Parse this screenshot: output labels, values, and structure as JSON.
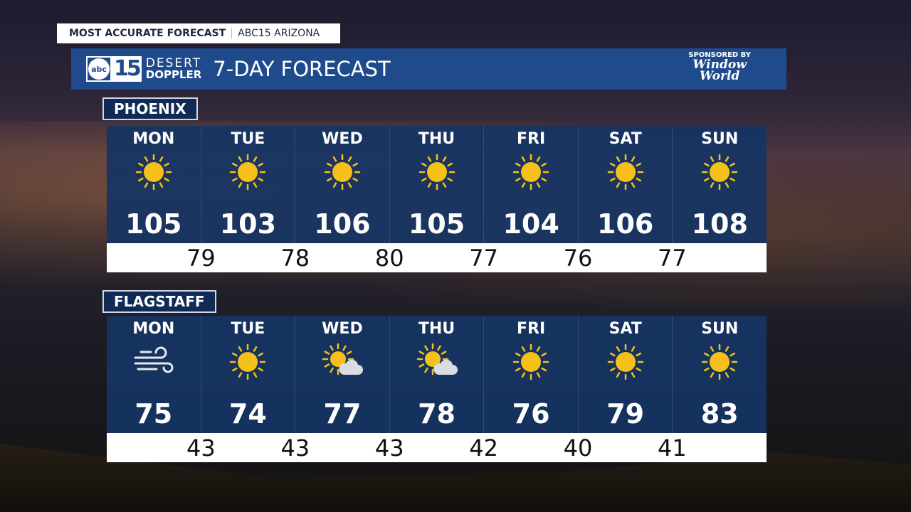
{
  "tagline": {
    "primary": "MOST ACCURATE FORECAST",
    "secondary": "ABC15 ARIZONA"
  },
  "banner": {
    "logo_abc": "abc",
    "logo_15": "15",
    "logo_line1": "DESERT",
    "logo_line2": "DOPPLER",
    "title": "7-DAY FORECAST",
    "sponsor_label": "SPONSORED BY",
    "sponsor_line1": "Window",
    "sponsor_line2": "World"
  },
  "colors": {
    "banner": "#1f4b8c",
    "panel": "#163464",
    "sun": "#f5c01a"
  },
  "cities": [
    {
      "name": "PHOENIX",
      "days": [
        {
          "day": "MON",
          "icon": "sun-icon",
          "high": "105"
        },
        {
          "day": "TUE",
          "icon": "sun-icon",
          "high": "103"
        },
        {
          "day": "WED",
          "icon": "sun-icon",
          "high": "106"
        },
        {
          "day": "THU",
          "icon": "sun-icon",
          "high": "105"
        },
        {
          "day": "FRI",
          "icon": "sun-icon",
          "high": "104"
        },
        {
          "day": "SAT",
          "icon": "sun-icon",
          "high": "106"
        },
        {
          "day": "SUN",
          "icon": "sun-icon",
          "high": "108"
        }
      ],
      "lows": [
        "79",
        "78",
        "80",
        "77",
        "76",
        "77"
      ]
    },
    {
      "name": "FLAGSTAFF",
      "days": [
        {
          "day": "MON",
          "icon": "wind-icon",
          "high": "75"
        },
        {
          "day": "TUE",
          "icon": "sun-icon",
          "high": "74"
        },
        {
          "day": "WED",
          "icon": "partly-cloudy-icon",
          "high": "77"
        },
        {
          "day": "THU",
          "icon": "partly-cloudy-icon",
          "high": "78"
        },
        {
          "day": "FRI",
          "icon": "sun-icon",
          "high": "76"
        },
        {
          "day": "SAT",
          "icon": "sun-icon",
          "high": "79"
        },
        {
          "day": "SUN",
          "icon": "sun-icon",
          "high": "83"
        }
      ],
      "lows": [
        "43",
        "43",
        "43",
        "42",
        "40",
        "41"
      ]
    }
  ]
}
